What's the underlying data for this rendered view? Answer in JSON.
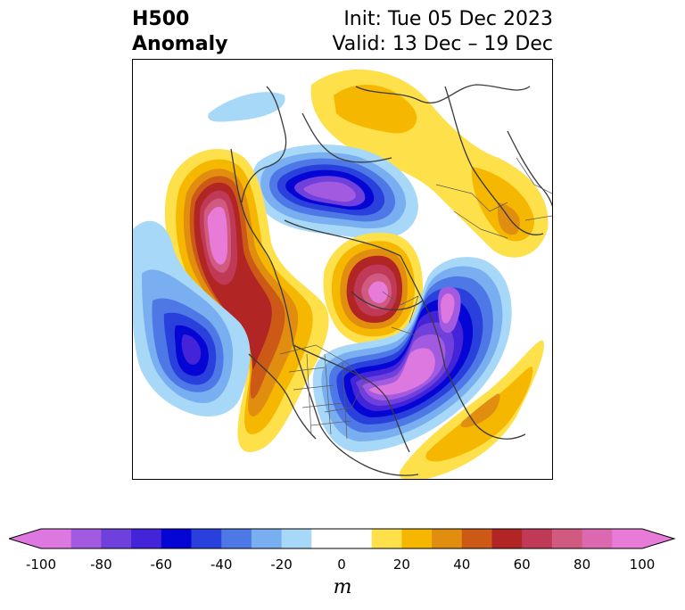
{
  "title": {
    "left_line1": "H500",
    "left_line2": "Anomaly",
    "right_line1": "Init: Tue 05 Dec 2023",
    "right_line2": "Valid: 13 Dec – 19 Dec"
  },
  "map": {
    "projection": "north-polar-stereographic",
    "field": "500 hPa geopotential height anomaly",
    "features": [
      {
        "region": "Greenland / northern Canada",
        "sign": "negative",
        "peak_m": -90
      },
      {
        "region": "Gulf of Alaska / western North America",
        "sign": "positive",
        "peak_m": 100
      },
      {
        "region": "North Pacific (west of ridge)",
        "sign": "negative",
        "peak_m": -70
      },
      {
        "region": "Scandinavia / northern Europe",
        "sign": "positive",
        "peak_m": 100
      },
      {
        "region": "Eastern Europe / Western Russia",
        "sign": "negative",
        "peak_m": -100
      },
      {
        "region": "Central Asia / Siberia",
        "sign": "positive",
        "peak_m": 50
      },
      {
        "region": "Arctic / northern Russia",
        "sign": "positive",
        "peak_m": 30
      },
      {
        "region": "Central Asia",
        "sign": "positive",
        "peak_m": 40
      }
    ]
  },
  "colorbar": {
    "unit": "m",
    "min": -100,
    "max": 100,
    "step": 10,
    "extend": "both",
    "tick_labels": [
      "-100",
      "-80",
      "-60",
      "-40",
      "-20",
      "0",
      "20",
      "40",
      "60",
      "80",
      "100"
    ],
    "colors": [
      "#dd78e0",
      "#a15ae0",
      "#7040dc",
      "#4324d8",
      "#0505d4",
      "#2a40dd",
      "#4e78e6",
      "#79aef0",
      "#a8d8f8",
      "#ffffff",
      "#ffffff",
      "#fde04a",
      "#f5b700",
      "#e08d10",
      "#cc5a16",
      "#b22525",
      "#c03a58",
      "#d05a80",
      "#dc68b0",
      "#e87ad8"
    ],
    "extend_low_color": "#dd78e0",
    "extend_high_color": "#e87ad8"
  }
}
